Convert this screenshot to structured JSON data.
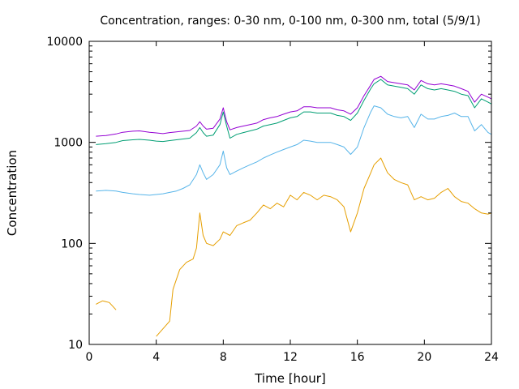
{
  "chart_data": {
    "type": "line",
    "title": "Concentration, ranges: 0-30 nm, 0-100 nm, 0-300 nm, total (5/9/1)",
    "xlabel": "Time [hour]",
    "ylabel": "Concentration",
    "xlim": [
      0,
      24
    ],
    "ylim": [
      10,
      10000
    ],
    "yscale": "log",
    "grid": false,
    "x_ticks": [
      0,
      4,
      8,
      12,
      16,
      20,
      24
    ],
    "y_ticks": [
      10,
      100,
      1000,
      10000
    ],
    "x_tick_labels": [
      "0",
      "4",
      "8",
      "12",
      "16",
      "20",
      "24"
    ],
    "y_tick_labels": [
      "10",
      "100",
      "1000",
      "10000"
    ],
    "series": [
      {
        "color": "#9400d3",
        "x": [
          0.4,
          1.0,
          1.6,
          2.0,
          2.6,
          3.0,
          3.6,
          4.0,
          4.4,
          4.8,
          5.2,
          5.6,
          6.0,
          6.4,
          6.6,
          6.8,
          7.0,
          7.4,
          7.8,
          8.0,
          8.2,
          8.4,
          8.8,
          9.2,
          9.6,
          10.0,
          10.4,
          10.8,
          11.2,
          11.6,
          12.0,
          12.4,
          12.8,
          13.2,
          13.6,
          14.0,
          14.4,
          14.8,
          15.2,
          15.6,
          16.0,
          16.4,
          16.8,
          17.0,
          17.4,
          17.8,
          18.2,
          18.6,
          19.0,
          19.4,
          19.8,
          20.2,
          20.6,
          21.0,
          21.4,
          21.8,
          22.2,
          22.6,
          23.0,
          23.4,
          23.8,
          24.0
        ],
        "y": [
          1150,
          1170,
          1210,
          1260,
          1290,
          1300,
          1260,
          1240,
          1220,
          1250,
          1270,
          1290,
          1310,
          1450,
          1600,
          1450,
          1350,
          1380,
          1700,
          2200,
          1600,
          1330,
          1400,
          1450,
          1500,
          1550,
          1680,
          1750,
          1800,
          1900,
          2000,
          2050,
          2250,
          2250,
          2200,
          2200,
          2200,
          2100,
          2050,
          1900,
          2200,
          2900,
          3700,
          4200,
          4500,
          4000,
          3900,
          3800,
          3700,
          3300,
          4100,
          3800,
          3700,
          3800,
          3700,
          3600,
          3400,
          3200,
          2500,
          3000,
          2800,
          2700
        ]
      },
      {
        "color": "#009e73",
        "x": [
          0.4,
          1.0,
          1.6,
          2.0,
          2.6,
          3.0,
          3.6,
          4.0,
          4.4,
          4.8,
          5.2,
          5.6,
          6.0,
          6.4,
          6.6,
          6.8,
          7.0,
          7.4,
          7.8,
          8.0,
          8.2,
          8.4,
          8.8,
          9.2,
          9.6,
          10.0,
          10.4,
          10.8,
          11.2,
          11.6,
          12.0,
          12.4,
          12.8,
          13.2,
          13.6,
          14.0,
          14.4,
          14.8,
          15.2,
          15.6,
          16.0,
          16.4,
          16.8,
          17.0,
          17.4,
          17.8,
          18.2,
          18.6,
          19.0,
          19.4,
          19.8,
          20.2,
          20.6,
          21.0,
          21.4,
          21.8,
          22.2,
          22.6,
          23.0,
          23.4,
          23.8,
          24.0
        ],
        "y": [
          950,
          970,
          1000,
          1040,
          1060,
          1070,
          1050,
          1030,
          1020,
          1040,
          1060,
          1080,
          1100,
          1250,
          1400,
          1250,
          1150,
          1180,
          1500,
          2000,
          1450,
          1100,
          1200,
          1250,
          1300,
          1350,
          1450,
          1500,
          1550,
          1650,
          1750,
          1800,
          2000,
          2000,
          1950,
          1950,
          1950,
          1850,
          1800,
          1650,
          1950,
          2600,
          3400,
          3800,
          4200,
          3700,
          3600,
          3500,
          3400,
          3000,
          3700,
          3400,
          3300,
          3400,
          3300,
          3200,
          3000,
          2900,
          2200,
          2700,
          2500,
          2400
        ]
      },
      {
        "color": "#56b4e9",
        "x": [
          0.4,
          1.0,
          1.6,
          2.0,
          2.6,
          3.0,
          3.6,
          4.0,
          4.4,
          4.8,
          5.2,
          5.6,
          6.0,
          6.4,
          6.6,
          6.8,
          7.0,
          7.4,
          7.8,
          8.0,
          8.2,
          8.4,
          8.8,
          9.2,
          9.6,
          10.0,
          10.4,
          10.8,
          11.2,
          11.6,
          12.0,
          12.4,
          12.8,
          13.2,
          13.6,
          14.0,
          14.4,
          14.8,
          15.2,
          15.6,
          16.0,
          16.4,
          16.8,
          17.0,
          17.4,
          17.8,
          18.2,
          18.6,
          19.0,
          19.4,
          19.8,
          20.2,
          20.6,
          21.0,
          21.4,
          21.8,
          22.2,
          22.6,
          23.0,
          23.4,
          23.8,
          24.0
        ],
        "y": [
          330,
          335,
          330,
          320,
          310,
          305,
          300,
          305,
          310,
          320,
          330,
          350,
          380,
          480,
          600,
          500,
          430,
          480,
          600,
          820,
          560,
          480,
          520,
          560,
          600,
          640,
          700,
          750,
          800,
          850,
          900,
          950,
          1050,
          1030,
          1000,
          1000,
          1000,
          950,
          900,
          760,
          900,
          1400,
          2000,
          2300,
          2200,
          1900,
          1800,
          1750,
          1800,
          1400,
          1900,
          1700,
          1700,
          1800,
          1850,
          1950,
          1800,
          1800,
          1300,
          1500,
          1250,
          1200
        ]
      },
      {
        "color": "#e69f00",
        "x": [
          0.4,
          0.8,
          1.2,
          1.6,
          4.0,
          4.8,
          5.0,
          5.4,
          5.8,
          6.2,
          6.4,
          6.6,
          6.8,
          7.0,
          7.4,
          7.8,
          8.0,
          8.4,
          8.8,
          9.2,
          9.6,
          10.0,
          10.4,
          10.8,
          11.2,
          11.6,
          12.0,
          12.4,
          12.8,
          13.2,
          13.6,
          14.0,
          14.4,
          14.8,
          15.2,
          15.6,
          16.0,
          16.4,
          16.8,
          17.0,
          17.4,
          17.8,
          18.2,
          18.6,
          19.0,
          19.4,
          19.8,
          20.2,
          20.6,
          21.0,
          21.4,
          21.8,
          22.2,
          22.6,
          23.0,
          23.4,
          23.8,
          24.0
        ],
        "y": [
          25,
          27,
          26,
          22,
          12,
          17,
          35,
          55,
          65,
          70,
          90,
          200,
          120,
          100,
          95,
          110,
          130,
          120,
          150,
          160,
          170,
          200,
          240,
          220,
          250,
          230,
          300,
          270,
          320,
          300,
          270,
          300,
          290,
          270,
          230,
          130,
          200,
          350,
          500,
          600,
          700,
          500,
          430,
          400,
          380,
          270,
          290,
          270,
          280,
          320,
          350,
          290,
          260,
          250,
          220,
          200,
          195,
          200
        ]
      }
    ]
  }
}
